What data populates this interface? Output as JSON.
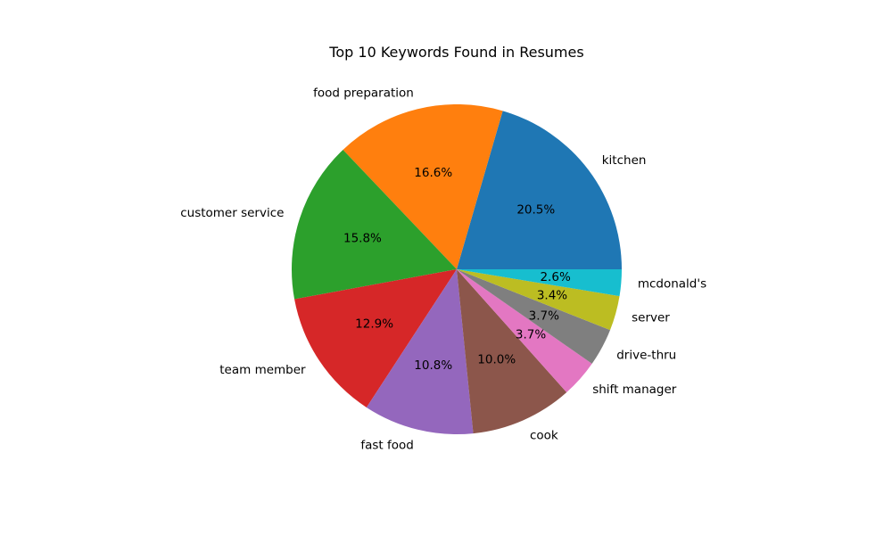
{
  "chart_data": {
    "type": "pie",
    "title": "Top 10 Keywords Found in Resumes",
    "start_angle_deg": 0,
    "direction": "counterclockwise",
    "slices": [
      {
        "label": "kitchen",
        "value": 20.5,
        "pct_text": "20.5%",
        "color": "#1f77b4"
      },
      {
        "label": "food preparation",
        "value": 16.6,
        "pct_text": "16.6%",
        "color": "#ff7f0e"
      },
      {
        "label": "customer service",
        "value": 15.8,
        "pct_text": "15.8%",
        "color": "#2ca02c"
      },
      {
        "label": "team member",
        "value": 12.9,
        "pct_text": "12.9%",
        "color": "#d62728"
      },
      {
        "label": "fast food",
        "value": 10.8,
        "pct_text": "10.8%",
        "color": "#9467bd"
      },
      {
        "label": "cook",
        "value": 10.0,
        "pct_text": "10.0%",
        "color": "#8c564b"
      },
      {
        "label": "shift manager",
        "value": 3.7,
        "pct_text": "3.7%",
        "color": "#e377c2"
      },
      {
        "label": "drive-thru",
        "value": 3.7,
        "pct_text": "3.7%",
        "color": "#7f7f7f"
      },
      {
        "label": "server",
        "value": 3.4,
        "pct_text": "3.4%",
        "color": "#bcbd22"
      },
      {
        "label": "mcdonald's",
        "value": 2.6,
        "pct_text": "2.6%",
        "color": "#17becf"
      }
    ]
  }
}
